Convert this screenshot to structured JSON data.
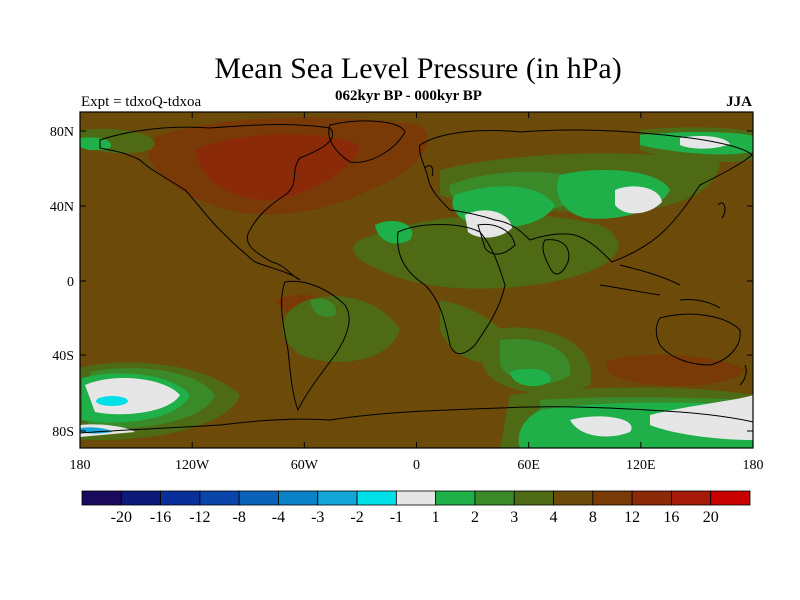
{
  "title": "Mean Sea Level Pressure (in hPa)",
  "left_string": "Expt = tdxoQ-tdxoa",
  "center_string": "062kyr BP - 000kyr BP",
  "right_string": "JJA",
  "lat_ticks": [
    "80N",
    "40N",
    "0",
    "40S",
    "80S"
  ],
  "lon_ticks": [
    "180",
    "120W",
    "60W",
    "0",
    "60E",
    "120E",
    "180"
  ],
  "colorbar": {
    "colors": [
      "#1a0a5c",
      "#0d1a7a",
      "#0a2f9a",
      "#0a45aa",
      "#0a63b8",
      "#0a82c8",
      "#14a6d8",
      "#00e0e8",
      "#e6e6e6",
      "#1fb04a",
      "#3a8a2a",
      "#4e6a14",
      "#6b4a0a",
      "#7a3a08",
      "#8a2a08",
      "#a51a08",
      "#c80000"
    ],
    "labels": [
      "-20",
      "-16",
      "-12",
      "-8",
      "-4",
      "-3",
      "-2",
      "-1",
      "1",
      "2",
      "3",
      "4",
      "8",
      "12",
      "16",
      "20"
    ]
  }
}
